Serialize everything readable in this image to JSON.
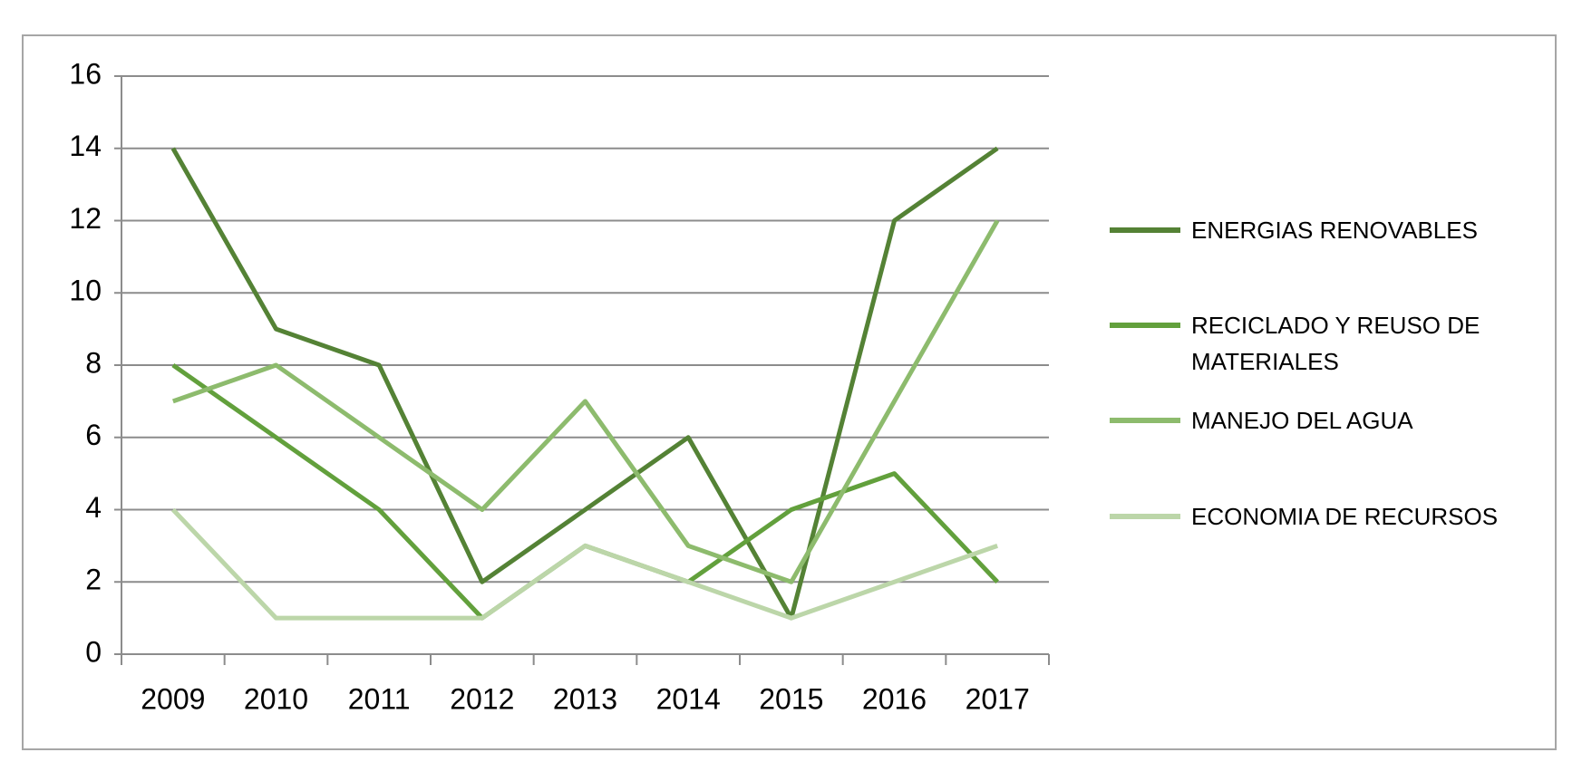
{
  "chart_data": {
    "type": "line",
    "categories": [
      "2009",
      "2010",
      "2011",
      "2012",
      "2013",
      "2014",
      "2015",
      "2016",
      "2017"
    ],
    "series": [
      {
        "name": "ENERGIAS RENOVABLES",
        "color": "#548235",
        "values": [
          14,
          9,
          8,
          2,
          4,
          6,
          1,
          12,
          14
        ]
      },
      {
        "name": "RECICLADO Y REUSO DE MATERIALES",
        "color": "#62a03c",
        "values": [
          8,
          6,
          4,
          1,
          3,
          2,
          4,
          5,
          2
        ]
      },
      {
        "name": "MANEJO DEL AGUA",
        "color": "#8dbb6d",
        "values": [
          7,
          8,
          6,
          4,
          7,
          3,
          2,
          7,
          12
        ]
      },
      {
        "name": "ECONOMIA DE RECURSOS",
        "color": "#bcd6a9",
        "values": [
          4,
          1,
          1,
          1,
          3,
          2,
          1,
          2,
          3
        ]
      }
    ],
    "ylim": [
      0,
      16
    ],
    "yticks": [
      0,
      2,
      4,
      6,
      8,
      10,
      12,
      14,
      16
    ],
    "grid": true,
    "legend": "right"
  }
}
